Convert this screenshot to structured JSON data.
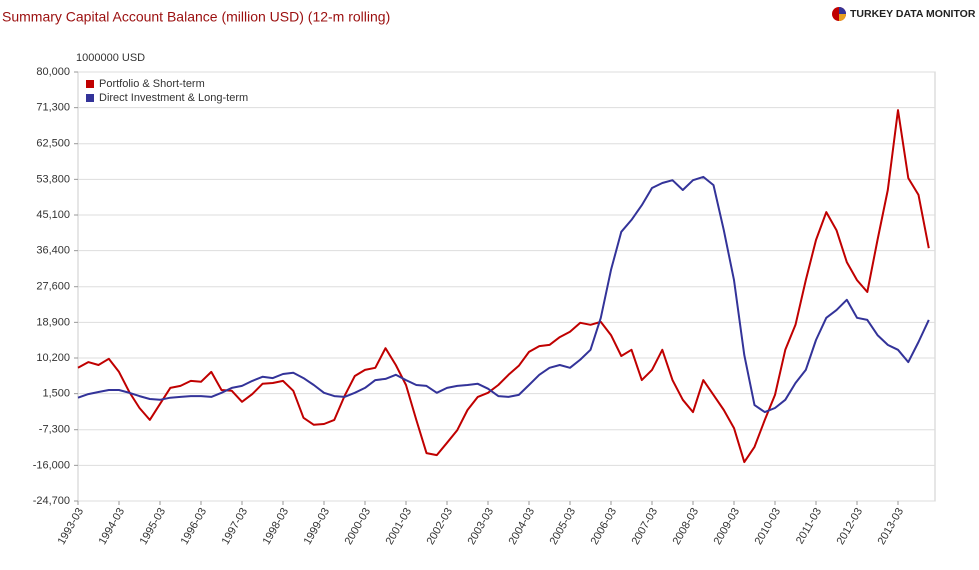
{
  "brand": "TURKEY DATA MONITOR",
  "chart_data": {
    "type": "line",
    "title": "Summary Capital Account Balance (million USD) (12-m rolling)",
    "y_unit_label": "1000000 USD",
    "categories": [
      "1993-03",
      null,
      null,
      null,
      "1994-03",
      null,
      null,
      null,
      "1995-03",
      null,
      null,
      null,
      "1996-03",
      null,
      null,
      null,
      "1997-03",
      null,
      null,
      null,
      "1998-03",
      null,
      null,
      null,
      "1999-03",
      null,
      null,
      null,
      "2000-03",
      null,
      null,
      null,
      "2001-03",
      null,
      null,
      null,
      "2002-03",
      null,
      null,
      null,
      "2003-03",
      null,
      null,
      null,
      "2004-03",
      null,
      null,
      null,
      "2005-03",
      null,
      null,
      null,
      "2006-03",
      null,
      null,
      null,
      "2007-03",
      null,
      null,
      null,
      "2008-03",
      null,
      null,
      null,
      "2009-03",
      null,
      null,
      null,
      "2010-03",
      null,
      null,
      null,
      "2011-03",
      null,
      null,
      null,
      "2012-03",
      null,
      null,
      null,
      "2013-03",
      null,
      null,
      null
    ],
    "series": [
      {
        "name": "Portfolio & Short-term",
        "color": "#c00000",
        "values": [
          7800,
          9200,
          8500,
          10000,
          6800,
          1900,
          -2000,
          -4900,
          -1000,
          2900,
          3400,
          4600,
          4400,
          6800,
          2400,
          2200,
          -500,
          1400,
          3900,
          4100,
          4600,
          2200,
          -4400,
          -6100,
          -5900,
          -4900,
          900,
          5800,
          7300,
          7800,
          12600,
          8500,
          3600,
          -4900,
          -13000,
          -13500,
          -10500,
          -7400,
          -2500,
          700,
          1700,
          3600,
          6100,
          8300,
          11700,
          13100,
          13400,
          15300,
          16600,
          18800,
          18300,
          19000,
          15800,
          10700,
          12200,
          4800,
          7300,
          12200,
          4800,
          0,
          -3000,
          4800,
          1200,
          -2500,
          -6900,
          -15200,
          -11500,
          -4900,
          1200,
          12200,
          18300,
          29200,
          39000,
          45800,
          41400,
          33600,
          29200,
          26300,
          39000,
          51200,
          70700,
          54100,
          50000,
          37000
        ]
      },
      {
        "name": "Direct Investment & Long-term",
        "color": "#333399",
        "values": [
          500,
          1400,
          1900,
          2400,
          2400,
          1700,
          900,
          200,
          0,
          500,
          700,
          900,
          900,
          700,
          1700,
          2900,
          3400,
          4600,
          5600,
          5300,
          6300,
          6600,
          5300,
          3600,
          1700,
          900,
          700,
          1700,
          2900,
          4800,
          5100,
          6100,
          4800,
          3600,
          3400,
          1700,
          2900,
          3400,
          3600,
          3900,
          2700,
          900,
          700,
          1200,
          3600,
          6100,
          7800,
          8500,
          7800,
          9800,
          12200,
          20000,
          31700,
          41000,
          43900,
          47500,
          51700,
          52900,
          53600,
          51200,
          53600,
          54400,
          52400,
          41400,
          29200,
          10900,
          -1300,
          -3000,
          -2000,
          0,
          4100,
          7300,
          14600,
          20000,
          21900,
          24400,
          20000,
          19500,
          15800,
          13400,
          12200,
          9200,
          14100,
          19500
        ]
      }
    ],
    "ylim": [
      -24700,
      80000
    ],
    "yticks": [
      {
        "value": -24700,
        "label": "-24,700"
      },
      {
        "value": -16000,
        "label": "-16,000"
      },
      {
        "value": -7300,
        "label": "-7,300"
      },
      {
        "value": 1500,
        "label": "1,500"
      },
      {
        "value": 10200,
        "label": "10,200"
      },
      {
        "value": 18900,
        "label": "18,900"
      },
      {
        "value": 27600,
        "label": "27,600"
      },
      {
        "value": 36400,
        "label": "36,400"
      },
      {
        "value": 45100,
        "label": "45,100"
      },
      {
        "value": 53800,
        "label": "53,800"
      },
      {
        "value": 62500,
        "label": "62,500"
      },
      {
        "value": 71300,
        "label": "71,300"
      },
      {
        "value": 80000,
        "label": "80,000"
      }
    ],
    "grid": true,
    "legend": "top-left"
  }
}
